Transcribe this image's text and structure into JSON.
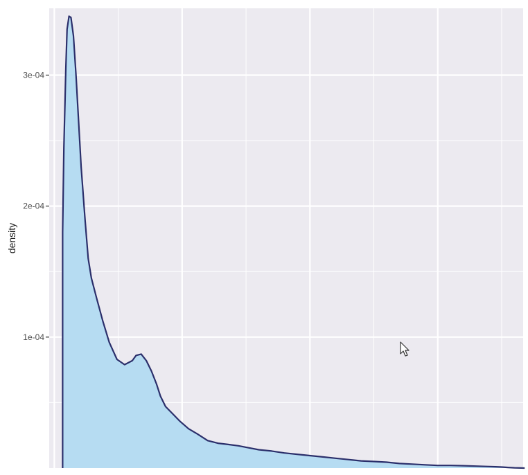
{
  "chart_data": {
    "type": "area",
    "title": "",
    "xlabel": "",
    "ylabel": "density",
    "ylim": [
      0,
      0.000351
    ],
    "xlim": [
      -40,
      3668
    ],
    "y_ticks": [
      {
        "value": 0.0001,
        "label": "1e-04"
      },
      {
        "value": 0.0002,
        "label": "2e-04"
      },
      {
        "value": 0.0003,
        "label": "3e-04"
      }
    ],
    "y_minor": [
      5e-05,
      0.00015,
      0.00025
    ],
    "x_major_gridlines": [
      0,
      1000,
      2000,
      3000
    ],
    "x_minor_gridlines": [
      500,
      1500,
      2500,
      3500
    ],
    "grid": true,
    "series": [
      {
        "x": [
          65,
          75,
          90,
          100,
          115,
          130,
          150,
          170,
          190,
          210,
          240,
          265,
          290,
          330,
          380,
          430,
          490,
          550,
          610,
          640,
          680,
          720,
          760,
          800,
          830,
          870,
          920,
          980,
          1050,
          1120,
          1200,
          1280,
          1360,
          1440,
          1520,
          1600,
          1700,
          1800,
          1900,
          2000,
          2100,
          2200,
          2300,
          2400,
          2500,
          2600,
          2700,
          2800,
          2900,
          3000,
          3100,
          3200,
          3300,
          3380,
          3450,
          3500,
          3550,
          3600,
          3680
        ],
        "y": [
          0.00018,
          0.000245,
          0.000305,
          0.000335,
          0.000345,
          0.000344,
          0.00033,
          0.0003,
          0.000265,
          0.00023,
          0.00019,
          0.00016,
          0.000145,
          0.00013,
          0.000112,
          9.6e-05,
          8.3e-05,
          7.9e-05,
          8.2e-05,
          8.6e-05,
          8.7e-05,
          8.2e-05,
          7.4e-05,
          6.4e-05,
          5.5e-05,
          4.7e-05,
          4.2e-05,
          3.6e-05,
          3e-05,
          2.6e-05,
          2.1e-05,
          1.9e-05,
          1.8e-05,
          1.7e-05,
          1.55e-05,
          1.4e-05,
          1.3e-05,
          1.15e-05,
          1.05e-05,
          9.5e-06,
          8.5e-06,
          7.5e-06,
          6.5e-06,
          5.5e-06,
          5e-06,
          4.5e-06,
          3.5e-06,
          3e-06,
          2.5e-06,
          2e-06,
          2e-06,
          1.8e-06,
          1.5e-06,
          1.2e-06,
          1e-06,
          8e-07,
          5e-07,
          2e-07,
          0
        ]
      }
    ],
    "fill_color": "#b6dcf2",
    "line_color": "#2b2f6b",
    "panel_background": "#eceaf0",
    "gridline_color": "#ffffff"
  }
}
